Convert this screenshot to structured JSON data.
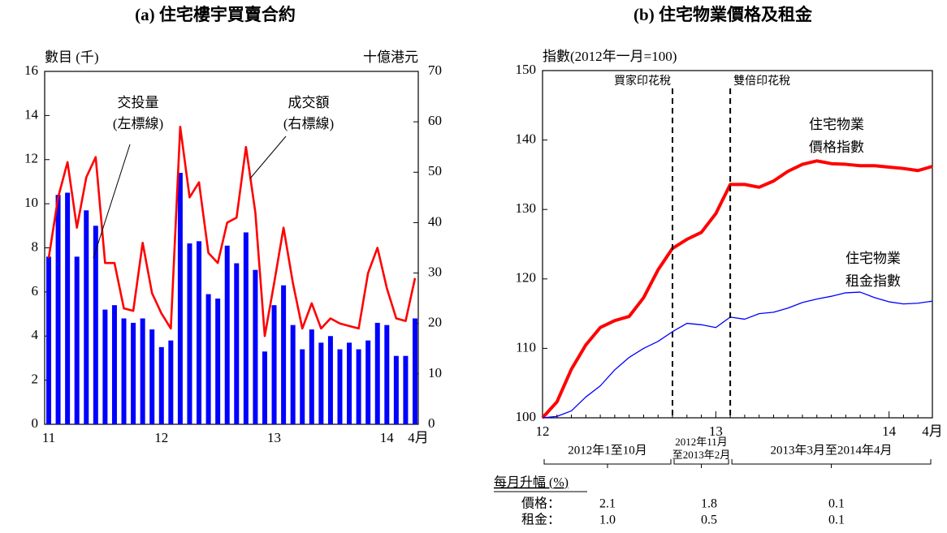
{
  "chart_data": [
    {
      "type": "bar_line",
      "title": "(a)  住宅樓宇買賣合約",
      "ylabel": "數目 (千)",
      "y2label": "十億港元",
      "categories": [
        "11",
        null,
        null,
        null,
        null,
        null,
        null,
        null,
        null,
        null,
        null,
        null,
        "12",
        null,
        null,
        null,
        null,
        null,
        null,
        null,
        null,
        null,
        null,
        null,
        "13",
        null,
        null,
        null,
        null,
        null,
        null,
        null,
        null,
        null,
        null,
        null,
        "14",
        null,
        null,
        "4月"
      ],
      "series": [
        {
          "name": "交投量",
          "note": "(左標線)",
          "color": "#0000ff",
          "values": [
            7.6,
            10.4,
            10.5,
            7.6,
            9.7,
            9.0,
            5.2,
            5.4,
            4.8,
            4.6,
            4.8,
            4.3,
            3.5,
            3.8,
            11.4,
            8.2,
            8.3,
            5.9,
            5.7,
            8.1,
            7.3,
            8.7,
            7.0,
            3.3,
            5.4,
            6.3,
            4.5,
            3.4,
            4.3,
            3.7,
            4.0,
            3.4,
            3.7,
            3.4,
            3.8,
            4.6,
            4.5,
            3.1,
            3.1,
            4.8
          ]
        },
        {
          "name": "成交額",
          "note": "(右標線)",
          "color": "#ff0000",
          "axis": "y2",
          "values": [
            33,
            45,
            52,
            39,
            49,
            53,
            32,
            32,
            23,
            22.5,
            36,
            26,
            22,
            19,
            59,
            45,
            48,
            34,
            32,
            40,
            41,
            55,
            42,
            17.5,
            28,
            39,
            28,
            19,
            24,
            19,
            21,
            20,
            19.5,
            19,
            30,
            35,
            27,
            21,
            20.5,
            29
          ]
        }
      ],
      "ylim": [
        0,
        16
      ],
      "yticks": [
        0,
        2,
        4,
        6,
        8,
        10,
        12,
        14,
        16
      ],
      "y2lim": [
        0,
        70
      ],
      "y2ticks": [
        0,
        10,
        20,
        30,
        40,
        50,
        60,
        70
      ]
    },
    {
      "type": "line",
      "title": "(b)  住宅物業價格及租金",
      "ylabel": "指數(2012年一月=100)",
      "categories": [
        "12",
        null,
        null,
        null,
        null,
        null,
        null,
        null,
        null,
        null,
        null,
        null,
        "13",
        null,
        null,
        null,
        null,
        null,
        null,
        null,
        null,
        null,
        null,
        null,
        "14",
        null,
        null,
        "4月"
      ],
      "series": [
        {
          "name_lines": [
            "住宅物業",
            "價格指數"
          ],
          "color": "#ff0000",
          "width": 4,
          "values": [
            100,
            102.3,
            107,
            110.5,
            113,
            114,
            114.6,
            117.3,
            121.3,
            124.4,
            125.7,
            126.7,
            129.4,
            133.6,
            133.6,
            133.2,
            134.1,
            135.5,
            136.5,
            137.0,
            136.6,
            136.5,
            136.3,
            136.3,
            136.1,
            135.9,
            135.6,
            136.2
          ]
        },
        {
          "name_lines": [
            "住宅物業",
            "租金指數"
          ],
          "color": "#0000ff",
          "width": 1.3,
          "values": [
            100,
            100.2,
            101,
            103,
            104.6,
            106.9,
            108.7,
            110,
            111,
            112.4,
            113.6,
            113.4,
            113.0,
            114.5,
            114.2,
            115.0,
            115.2,
            115.8,
            116.6,
            117.1,
            117.5,
            118,
            118.1,
            117.3,
            116.7,
            116.4,
            116.5,
            116.8
          ]
        }
      ],
      "ylim": [
        100,
        150
      ],
      "yticks": [
        100,
        110,
        120,
        130,
        140,
        150
      ],
      "annotations": [
        "買家印花稅",
        "雙倍印花稅"
      ],
      "periods": [
        [
          "2012年1至10月"
        ],
        [
          "2012年11月",
          "至2013年2月"
        ],
        [
          "2013年3月至2014年4月"
        ]
      ],
      "table": {
        "title": "每月升幅 (%)",
        "rows": [
          {
            "label": "價格：",
            "values": [
              2.1,
              1.8,
              0.1
            ]
          },
          {
            "label": "租金：",
            "values": [
              1.0,
              0.5,
              0.1
            ],
            "value_labels": [
              "1.0",
              "0.5",
              "0.1"
            ]
          }
        ]
      }
    }
  ]
}
